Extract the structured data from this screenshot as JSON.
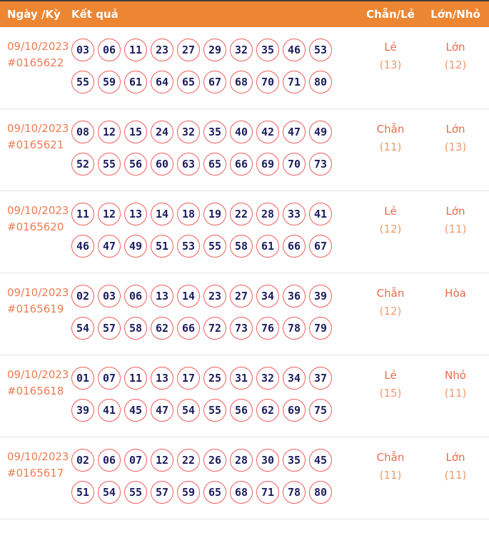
{
  "table": {
    "columns": {
      "date": "Ngày /Kỳ",
      "result": "Kết quả",
      "parity": "Chẵn/Lẻ",
      "size": "Lớn/Nhỏ"
    }
  },
  "colors": {
    "header_bg": "#ED8632",
    "top_border": "#3E3E3E",
    "accent_text": "#ED7C52",
    "ball_border": "#F05C5C",
    "ball_text": "#1C1C5E",
    "label_text": "#E96A4F",
    "count_text": "#F09B6E"
  },
  "draws": [
    {
      "date": "09/10/2023",
      "id": "#0165622",
      "numbers_line1": [
        "03",
        "06",
        "11",
        "23",
        "27",
        "29",
        "32",
        "35",
        "46",
        "53"
      ],
      "numbers_line2": [
        "55",
        "59",
        "61",
        "64",
        "65",
        "67",
        "68",
        "70",
        "71",
        "80"
      ],
      "parity_label": "Lẻ",
      "parity_count": "(13)",
      "size_label": "Lớn",
      "size_count": "(12)"
    },
    {
      "date": "09/10/2023",
      "id": "#0165621",
      "numbers_line1": [
        "08",
        "12",
        "15",
        "24",
        "32",
        "35",
        "40",
        "42",
        "47",
        "49"
      ],
      "numbers_line2": [
        "52",
        "55",
        "56",
        "60",
        "63",
        "65",
        "66",
        "69",
        "70",
        "73"
      ],
      "parity_label": "Chẵn",
      "parity_count": "(11)",
      "size_label": "Lớn",
      "size_count": "(13)"
    },
    {
      "date": "09/10/2023",
      "id": "#0165620",
      "numbers_line1": [
        "11",
        "12",
        "13",
        "14",
        "18",
        "19",
        "22",
        "28",
        "33",
        "41"
      ],
      "numbers_line2": [
        "46",
        "47",
        "49",
        "51",
        "53",
        "55",
        "58",
        "61",
        "66",
        "67"
      ],
      "parity_label": "Lẻ",
      "parity_count": "(12)",
      "size_label": "Lớn",
      "size_count": "(11)"
    },
    {
      "date": "09/10/2023",
      "id": "#0165619",
      "numbers_line1": [
        "02",
        "03",
        "06",
        "13",
        "14",
        "23",
        "27",
        "34",
        "36",
        "39"
      ],
      "numbers_line2": [
        "54",
        "57",
        "58",
        "62",
        "66",
        "72",
        "73",
        "76",
        "78",
        "79"
      ],
      "parity_label": "Chẵn",
      "parity_count": "(12)",
      "size_label": "Hòa",
      "size_count": ""
    },
    {
      "date": "09/10/2023",
      "id": "#0165618",
      "numbers_line1": [
        "01",
        "07",
        "11",
        "13",
        "17",
        "25",
        "31",
        "32",
        "34",
        "37"
      ],
      "numbers_line2": [
        "39",
        "41",
        "45",
        "47",
        "54",
        "55",
        "56",
        "62",
        "69",
        "75"
      ],
      "parity_label": "Lẻ",
      "parity_count": "(15)",
      "size_label": "Nhỏ",
      "size_count": "(11)"
    },
    {
      "date": "09/10/2023",
      "id": "#0165617",
      "numbers_line1": [
        "02",
        "06",
        "07",
        "12",
        "22",
        "26",
        "28",
        "30",
        "35",
        "45"
      ],
      "numbers_line2": [
        "51",
        "54",
        "55",
        "57",
        "59",
        "65",
        "68",
        "71",
        "78",
        "80"
      ],
      "parity_label": "Chẵn",
      "parity_count": "(11)",
      "size_label": "Lớn",
      "size_count": "(11)"
    }
  ]
}
